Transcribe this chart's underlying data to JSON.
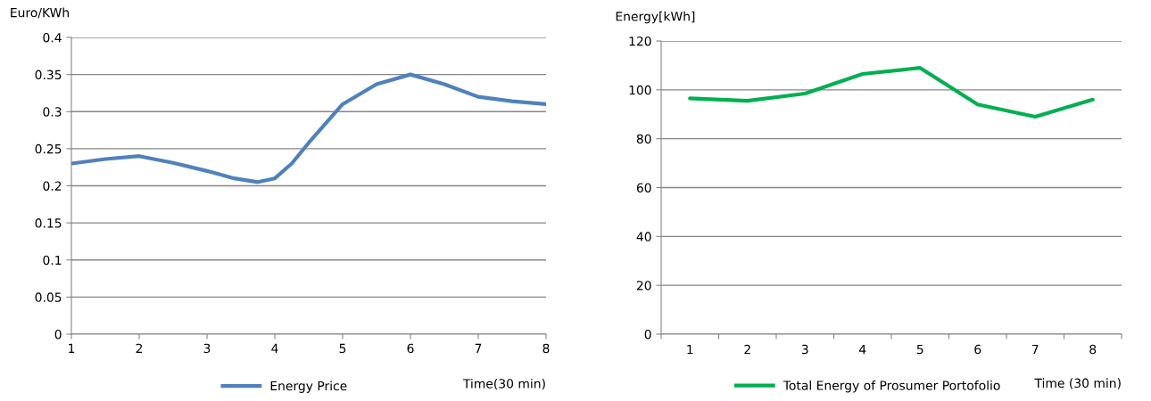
{
  "chart_data": [
    {
      "type": "line",
      "ylabel": "Euro/KWh",
      "xlabel": "Time(30 min)",
      "x": [
        1,
        1.5,
        2,
        2.5,
        3,
        3.4,
        3.75,
        4,
        4.25,
        4.5,
        5,
        5.5,
        6,
        6.5,
        7,
        7.5,
        8
      ],
      "series": [
        {
          "name": "Energy Price",
          "color": "#4f81bd",
          "values": [
            0.23,
            0.236,
            0.24,
            0.231,
            0.22,
            0.21,
            0.205,
            0.21,
            0.23,
            0.258,
            0.31,
            0.337,
            0.35,
            0.337,
            0.32,
            0.314,
            0.31
          ]
        }
      ],
      "xlim": [
        1,
        8
      ],
      "xticks": [
        1,
        2,
        3,
        4,
        5,
        6,
        7,
        8
      ],
      "ylim": [
        0,
        0.4
      ],
      "yticks": [
        0,
        0.05,
        0.1,
        0.15,
        0.2,
        0.25,
        0.3,
        0.35,
        0.4
      ],
      "grid": "y",
      "legend": "bottom"
    },
    {
      "type": "line",
      "ylabel": "Energy[kWh]",
      "xlabel": "Time (30 min)",
      "categories": [
        "1",
        "2",
        "3",
        "4",
        "5",
        "6",
        "7",
        "8"
      ],
      "series": [
        {
          "name": "Total Energy of Prosumer Portofolio",
          "color": "#00b050",
          "values": [
            96.5,
            95.5,
            98.5,
            106.5,
            109,
            94,
            89,
            96
          ]
        }
      ],
      "ylim": [
        0,
        120
      ],
      "yticks": [
        0,
        20,
        40,
        60,
        80,
        100,
        120
      ],
      "grid": "y",
      "legend": "bottom"
    }
  ]
}
